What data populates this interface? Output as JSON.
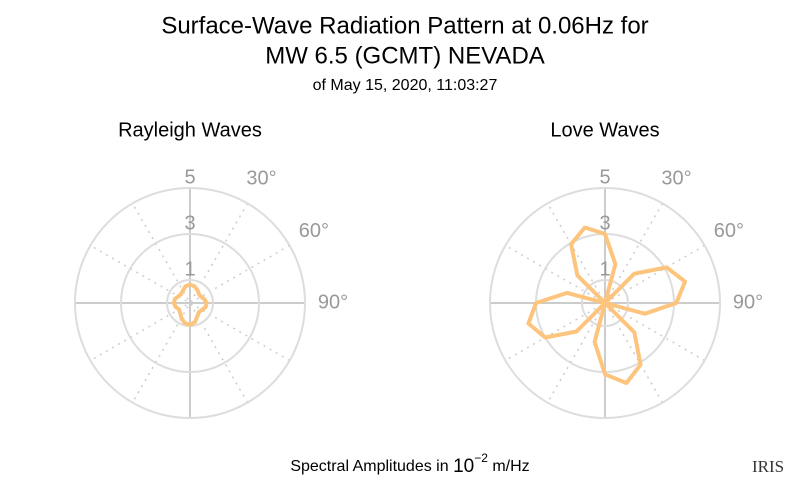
{
  "header": {
    "title": [
      "Surface-Wave Radiation Pattern at 0.06Hz for",
      "MW 6.5 (GCMT) NEVADA"
    ],
    "subtitle": "of May 15, 2020, 11:03:27"
  },
  "footer": {
    "axis_label": [
      "Spectral Amplitudes in ",
      "10",
      "−2",
      " m/Hz"
    ],
    "logo": "IRIS"
  },
  "chart_data": [
    {
      "type": "polar",
      "title": "Rayleigh Waves",
      "color": "#fdc47d",
      "x": [
        0,
        15,
        30,
        45,
        60,
        75,
        90,
        105,
        120,
        135,
        150,
        165,
        180,
        195,
        210,
        225,
        240,
        255,
        270,
        285,
        300,
        315,
        330,
        345
      ],
      "values": [
        0.8,
        0.75,
        0.65,
        0.55,
        0.55,
        0.65,
        0.72,
        0.7,
        0.6,
        0.55,
        0.65,
        0.85,
        0.95,
        0.9,
        0.75,
        0.6,
        0.55,
        0.65,
        0.7,
        0.68,
        0.58,
        0.55,
        0.62,
        0.75
      ],
      "rlim": [
        0,
        5
      ],
      "rticks": [
        1,
        3,
        5
      ],
      "thetaticks": [
        {
          "value": 30,
          "label": "30°"
        },
        {
          "value": 60,
          "label": "60°"
        },
        {
          "value": 90,
          "label": "90°"
        }
      ]
    },
    {
      "type": "polar",
      "title": "Love Waves",
      "color": "#fdc47d",
      "x": [
        0,
        15,
        30,
        45,
        60,
        75,
        90,
        105,
        120,
        135,
        150,
        165,
        180,
        195,
        210,
        225,
        240,
        255,
        270,
        285,
        300,
        315,
        330,
        345
      ],
      "values": [
        3.0,
        1.75,
        0,
        1.8,
        3.1,
        3.6,
        3.1,
        1.8,
        0,
        1.8,
        3.1,
        3.6,
        3.1,
        1.75,
        0,
        1.75,
        3.0,
        3.45,
        3.0,
        1.7,
        0,
        1.7,
        2.95,
        3.4
      ],
      "rlim": [
        0,
        5
      ],
      "rticks": [
        1,
        3,
        5
      ],
      "thetaticks": [
        {
          "value": 30,
          "label": "30°"
        },
        {
          "value": 60,
          "label": "60°"
        },
        {
          "value": 90,
          "label": "90°"
        }
      ]
    }
  ]
}
